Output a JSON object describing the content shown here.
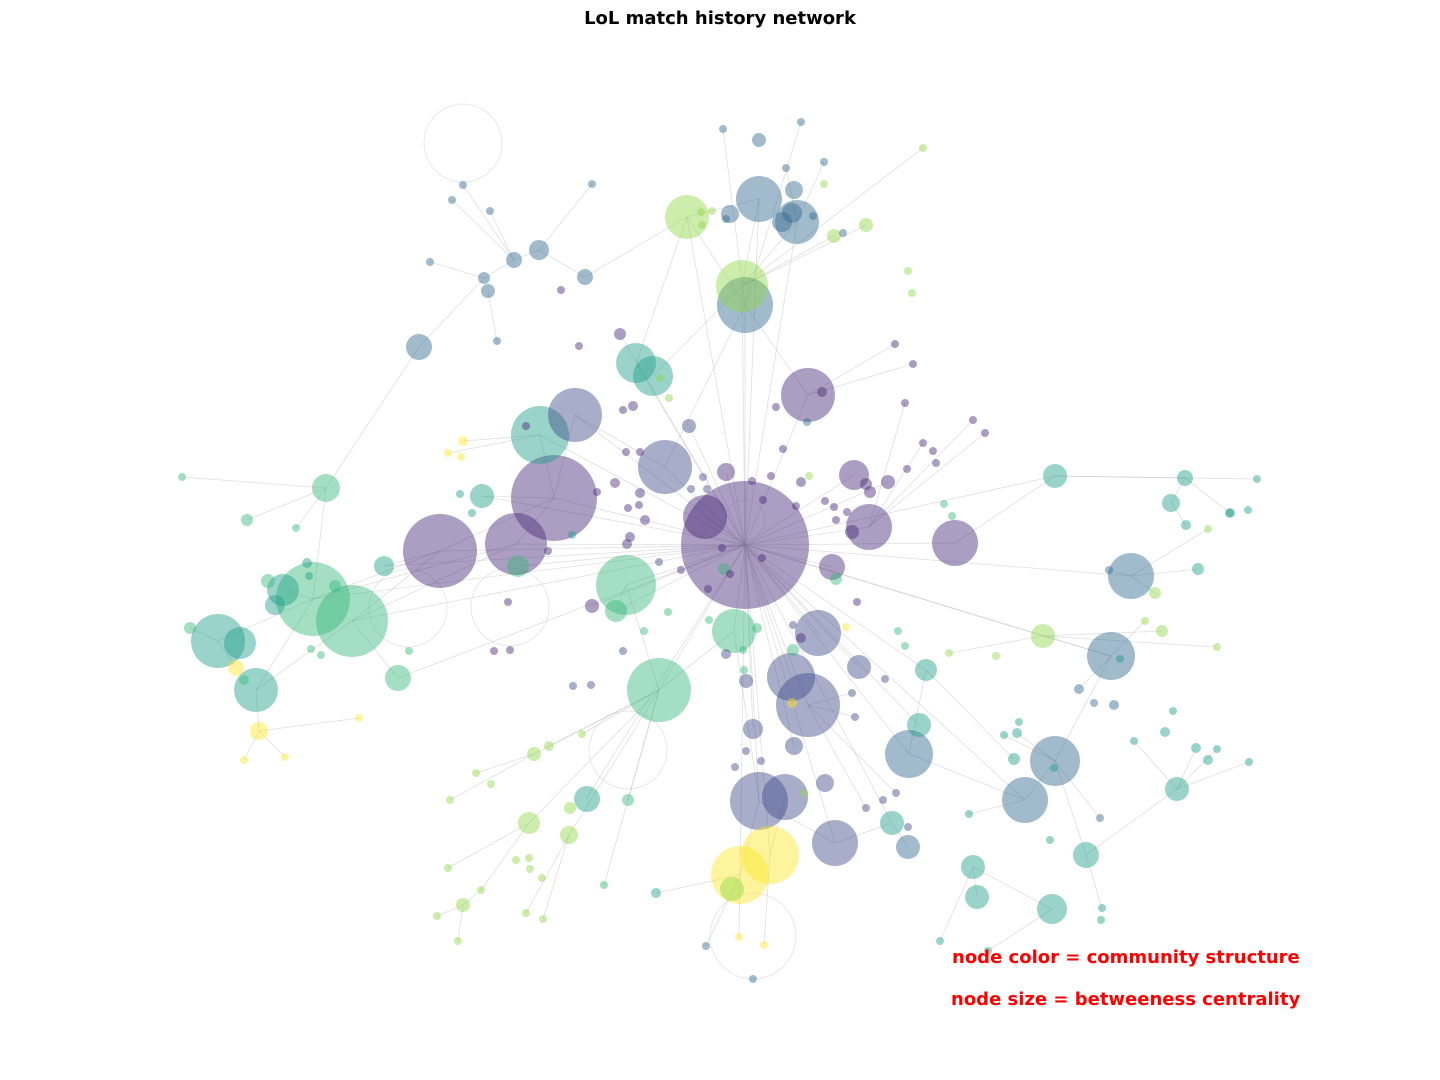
{
  "title": "LoL match history network",
  "annotations": {
    "color_note": "node color = community structure",
    "size_note": "node size = betweeness centrality",
    "note_color": "#ff0000"
  },
  "edge_color": "#b8b8b8",
  "palette": {
    "purple": "#482878",
    "indigo": "#3e4a89",
    "steel": "#31688e",
    "teal": "#1f9e89",
    "green": "#35b779",
    "lime": "#8fd744",
    "yellow": "#fde725"
  }
}
